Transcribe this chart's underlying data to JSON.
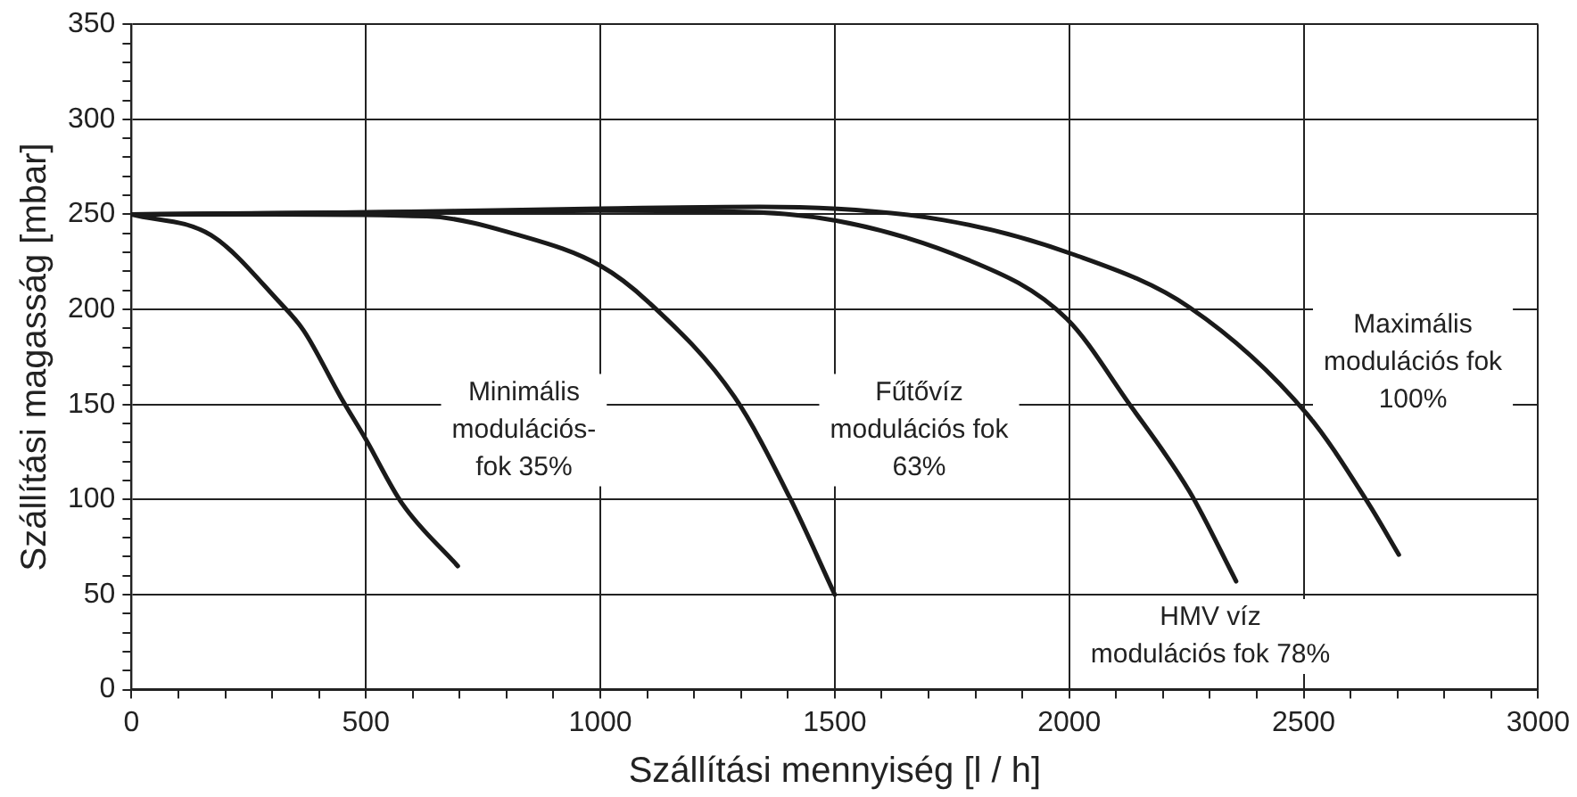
{
  "chart_data": {
    "type": "line",
    "xlabel": "Szállítási mennyiség [l / h]",
    "ylabel": "Szállítási magasság [mbar]",
    "xlim": [
      0,
      3000
    ],
    "ylim": [
      0,
      350
    ],
    "xticks": [
      0,
      {
        "value": 100,
        "label": null
      },
      {
        "value": 200,
        "label": null
      },
      {
        "value": 300,
        "label": null
      },
      {
        "value": 400,
        "label": null
      },
      500,
      {
        "value": 600,
        "label": null
      },
      {
        "value": 700,
        "label": null
      },
      {
        "value": 800,
        "label": null
      },
      {
        "value": 900,
        "label": null
      },
      1000,
      {
        "value": 1100,
        "label": null
      },
      {
        "value": 1200,
        "label": null
      },
      {
        "value": 1300,
        "label": null
      },
      {
        "value": 1400,
        "label": null
      },
      1500,
      {
        "value": 1600,
        "label": null
      },
      {
        "value": 1700,
        "label": null
      },
      {
        "value": 1800,
        "label": null
      },
      {
        "value": 1900,
        "label": null
      },
      2000,
      {
        "value": 2100,
        "label": null
      },
      {
        "value": 2200,
        "label": null
      },
      {
        "value": 2300,
        "label": null
      },
      {
        "value": 2400,
        "label": null
      },
      2500,
      {
        "value": 2600,
        "label": null
      },
      {
        "value": 2700,
        "label": null
      },
      {
        "value": 2800,
        "label": null
      },
      {
        "value": 2900,
        "label": null
      },
      3000
    ],
    "yticks": [
      0,
      {
        "value": 10,
        "label": null
      },
      {
        "value": 20,
        "label": null
      },
      {
        "value": 30,
        "label": null
      },
      {
        "value": 40,
        "label": null
      },
      50,
      {
        "value": 60,
        "label": null
      },
      {
        "value": 70,
        "label": null
      },
      {
        "value": 80,
        "label": null
      },
      {
        "value": 90,
        "label": null
      },
      100,
      {
        "value": 110,
        "label": null
      },
      {
        "value": 120,
        "label": null
      },
      {
        "value": 130,
        "label": null
      },
      {
        "value": 140,
        "label": null
      },
      150,
      {
        "value": 160,
        "label": null
      },
      {
        "value": 170,
        "label": null
      },
      {
        "value": 180,
        "label": null
      },
      {
        "value": 190,
        "label": null
      },
      200,
      {
        "value": 210,
        "label": null
      },
      {
        "value": 220,
        "label": null
      },
      {
        "value": 230,
        "label": null
      },
      {
        "value": 240,
        "label": null
      },
      250,
      {
        "value": 260,
        "label": null
      },
      {
        "value": 270,
        "label": null
      },
      {
        "value": 280,
        "label": null
      },
      {
        "value": 290,
        "label": null
      },
      300,
      {
        "value": 310,
        "label": null
      },
      {
        "value": 320,
        "label": null
      },
      {
        "value": 330,
        "label": null
      },
      {
        "value": 340,
        "label": null
      },
      350
    ],
    "grid": true,
    "marker": "none",
    "line_style": "solid",
    "legend": false,
    "series": [
      {
        "color": "#1a1a1a",
        "x": [
          0,
          170,
          315,
          367,
          446,
          499,
          577,
          696
        ],
        "values": [
          250,
          239,
          204,
          189,
          154,
          132,
          98,
          65
        ]
      },
      {
        "color": "#1a1a1a",
        "x": [
          0,
          300,
          630,
          827,
          1000,
          1102,
          1286,
          1404,
          1500
        ],
        "values": [
          250,
          250,
          249,
          239,
          223,
          204,
          154,
          101,
          50
        ]
      },
      {
        "color": "#1a1a1a",
        "x": [
          0,
          500,
          1000,
          1339,
          1785,
          1995,
          2126,
          2257,
          2356
        ],
        "values": [
          250,
          251,
          252,
          251,
          226,
          195,
          151,
          104,
          57
        ]
      },
      {
        "color": "#1a1a1a",
        "x": [
          0,
          500,
          1000,
          1339,
          1732,
          2008,
          2257,
          2507,
          2638,
          2703
        ],
        "values": [
          250,
          251,
          253,
          254,
          247,
          229,
          201,
          145,
          98,
          71
        ]
      }
    ],
    "annotations": [
      "Minimális\nmodulációs-\nfok 35%",
      "Fűtővíz\nmodulációs fok\n63%",
      "HMV víz\nmodulációs fok 78%",
      "Maximális\nmodulációs fok\n100%"
    ]
  }
}
